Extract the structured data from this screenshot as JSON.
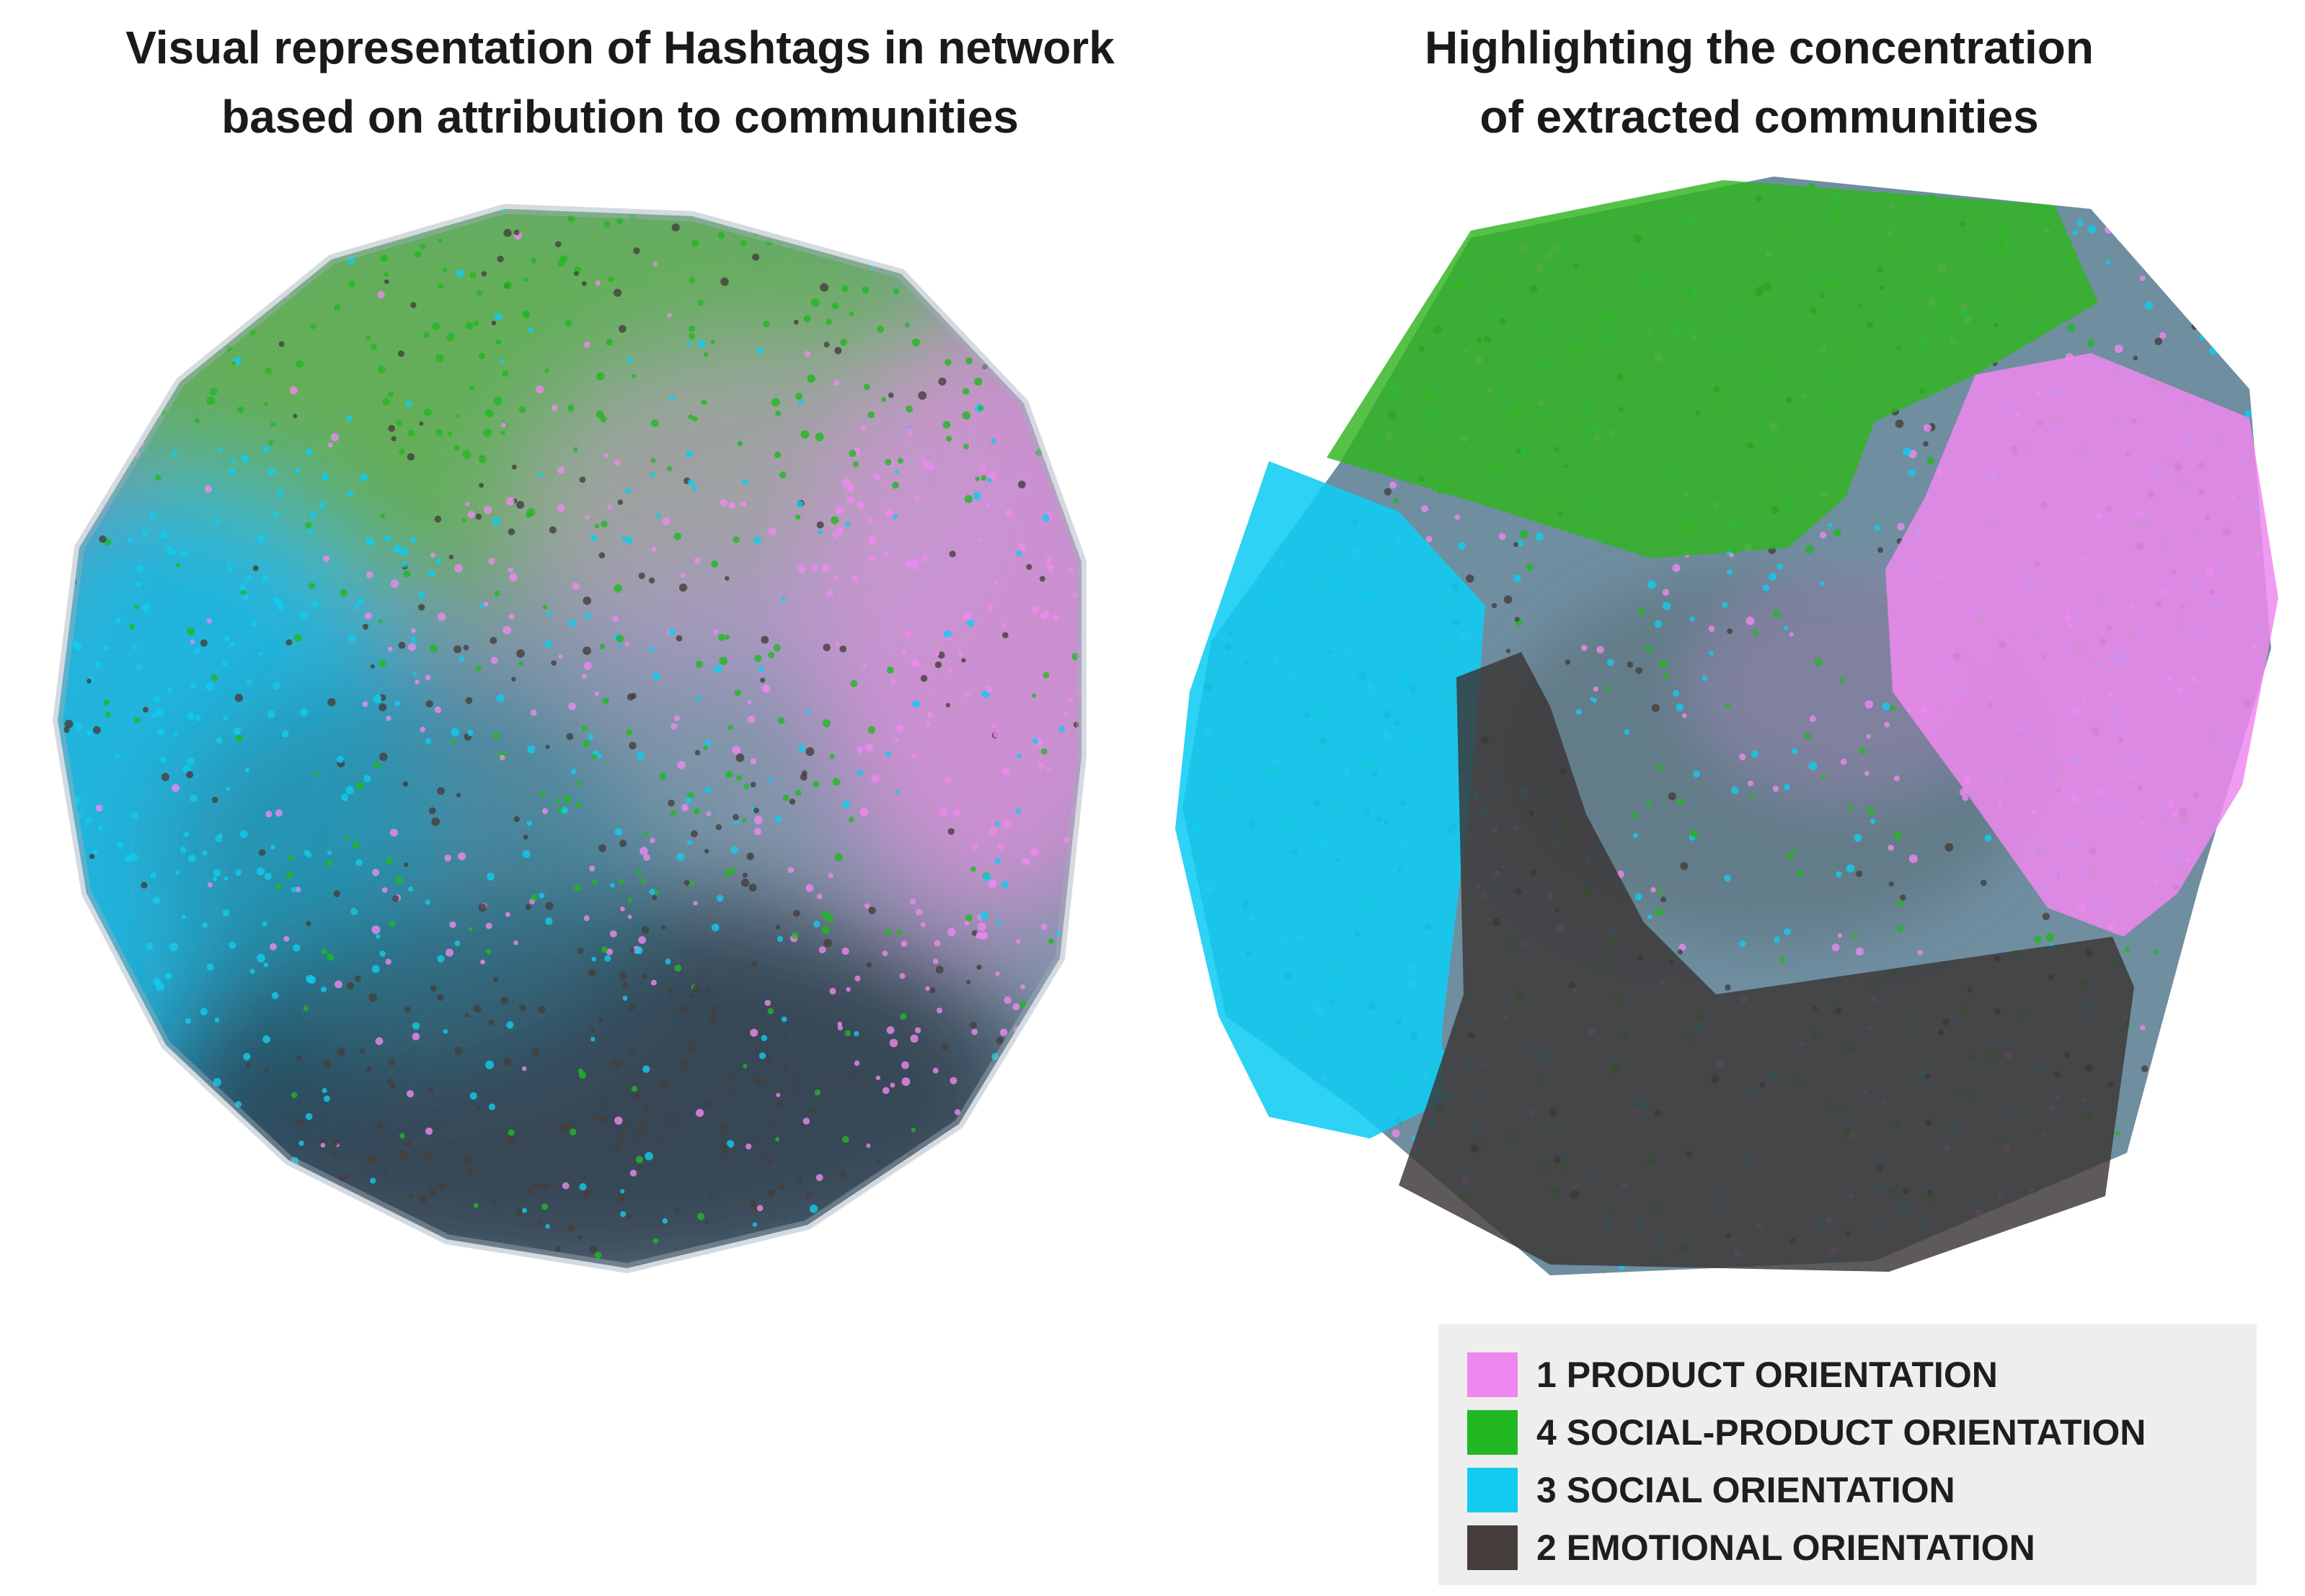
{
  "titles": {
    "left": [
      "Visual representation of Hashtags in network",
      "based on attribution to communities"
    ],
    "right": [
      "Highlighting the concentration",
      "of extracted communities"
    ]
  },
  "colors": {
    "product": "#ee88ee",
    "social_product": "#22b822",
    "social": "#11ccee",
    "emotional": "#453e3c"
  },
  "legend": [
    {
      "label": "1 PRODUCT ORIENTATION",
      "color": "#ee88ee"
    },
    {
      "label": "4 SOCIAL-PRODUCT ORIENTATION",
      "color": "#22b822"
    },
    {
      "label": "3 SOCIAL ORIENTATION",
      "color": "#11ccee"
    },
    {
      "label": "2 EMOTIONAL ORIENTATION",
      "color": "#453e3c"
    }
  ]
}
